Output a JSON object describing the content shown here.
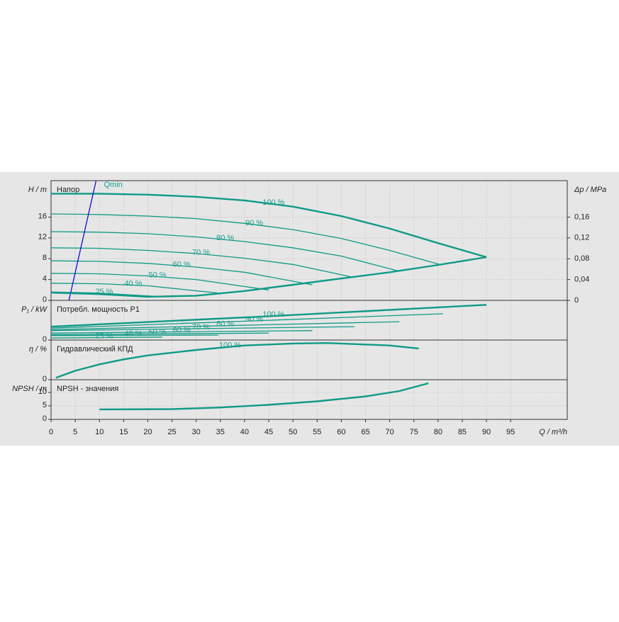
{
  "chart_data": [
    {
      "type": "line",
      "title": "Напор",
      "ylabel": "H / m",
      "y2label": "Δp / MPa",
      "ylim": [
        0,
        23
      ],
      "yticks": [
        0,
        4,
        8,
        12,
        16
      ],
      "y2lim": [
        0,
        0.23
      ],
      "y2ticks": [
        0,
        {
          "value": 0.04,
          "label": "0,04"
        },
        {
          "value": 0.08,
          "label": "0,08"
        },
        {
          "value": 0.12,
          "label": "0,12"
        },
        {
          "value": 0.16,
          "label": "0,16"
        }
      ],
      "series": [
        {
          "name": "100 %",
          "color": "#0f9a87",
          "x": [
            0,
            10,
            20,
            30,
            40,
            50,
            60,
            70,
            80,
            90
          ],
          "values": [
            20.5,
            20.5,
            20.3,
            19.9,
            19.2,
            18,
            16.2,
            13.8,
            11,
            8.3
          ]
        },
        {
          "name": "90 %",
          "color": "#0f9a87",
          "x": [
            0,
            10,
            20,
            30,
            40,
            50,
            60,
            70,
            80.3
          ],
          "values": [
            16.6,
            16.5,
            16.2,
            15.7,
            14.8,
            13.6,
            11.9,
            9.6,
            6.9
          ]
        },
        {
          "name": "80 %",
          "color": "#0f9a87",
          "x": [
            0,
            10,
            20,
            30,
            40,
            50,
            60,
            72
          ],
          "values": [
            13.2,
            13.1,
            12.8,
            12.2,
            11.3,
            10.1,
            8.5,
            5.6
          ]
        },
        {
          "name": "70 %",
          "color": "#0f9a87",
          "x": [
            0,
            10,
            20,
            30,
            40,
            50,
            62.7
          ],
          "values": [
            10.1,
            10,
            9.6,
            9,
            8.1,
            6.9,
            4.4
          ]
        },
        {
          "name": "60 %",
          "color": "#0f9a87",
          "x": [
            0,
            10,
            20,
            30,
            40,
            54
          ],
          "values": [
            7.6,
            7.5,
            7.1,
            6.4,
            5.4,
            3.0
          ]
        },
        {
          "name": "50 %",
          "color": "#0f9a87",
          "x": [
            0,
            10,
            20,
            30,
            45
          ],
          "values": [
            5.2,
            5.1,
            4.7,
            4.0,
            2.0
          ]
        },
        {
          "name": "40 %",
          "color": "#0f9a87",
          "x": [
            0,
            10,
            20,
            34.6
          ],
          "values": [
            3.3,
            3.2,
            2.8,
            1.4
          ]
        },
        {
          "name": "25 %",
          "color": "#0f9a87",
          "x": [
            0,
            10,
            23
          ],
          "values": [
            1.6,
            1.4,
            0.7
          ]
        },
        {
          "name": "Qmin",
          "color": "#1010c8",
          "x": [
            3.7,
            9.3
          ],
          "values": [
            0,
            23
          ]
        },
        {
          "color": "#0f9a87",
          "x": [
            0,
            10,
            20,
            30,
            40,
            50,
            60,
            70,
            80,
            90
          ],
          "values": [
            1.5,
            1.2,
            0.7,
            0.9,
            1.8,
            3.0,
            4.2,
            5.4,
            6.8,
            8.3
          ]
        }
      ]
    },
    {
      "type": "line",
      "title": "Потребл. мощность P1",
      "ylabel": "P₁ / kW",
      "ylim": [
        0,
        8
      ],
      "yticks": [
        0
      ],
      "series": [
        {
          "name": "100 %",
          "color": "#0f9a87",
          "x": [
            0,
            45,
            90
          ],
          "values": [
            2.7,
            4.8,
            7.1
          ]
        },
        {
          "name": "90 %",
          "color": "#0f9a87",
          "x": [
            0,
            40,
            81
          ],
          "values": [
            2.4,
            3.8,
            5.3
          ]
        },
        {
          "name": "80 %",
          "color": "#0f9a87",
          "x": [
            0,
            36,
            72
          ],
          "values": [
            2.1,
            2.9,
            3.7
          ]
        },
        {
          "name": "70 %",
          "color": "#0f9a87",
          "x": [
            0,
            31,
            62.7
          ],
          "values": [
            1.9,
            2.3,
            2.7
          ]
        },
        {
          "name": "60 %",
          "color": "#0f9a87",
          "x": [
            0,
            27,
            54
          ],
          "values": [
            1.4,
            1.65,
            1.9
          ]
        },
        {
          "name": "50 %",
          "color": "#0f9a87",
          "x": [
            0,
            22,
            45
          ],
          "values": [
            1.1,
            1.25,
            1.4
          ]
        },
        {
          "name": "40 %",
          "color": "#0f9a87",
          "x": [
            0,
            17,
            34.6
          ],
          "values": [
            0.9,
            0.95,
            1.0
          ]
        },
        {
          "name": "25 %",
          "color": "#0f9a87",
          "x": [
            0,
            11,
            23
          ],
          "values": [
            0.4,
            0.5,
            0.6
          ]
        }
      ]
    },
    {
      "type": "line",
      "title": "Гидравлический КПД",
      "ylabel": "η / %",
      "ylim": [
        0,
        80
      ],
      "yticks": [
        0
      ],
      "series": [
        {
          "name": "100 %",
          "color": "#0f9a87",
          "x": [
            1,
            5,
            10,
            15,
            20,
            30,
            40,
            50,
            57,
            65,
            70,
            76
          ],
          "values": [
            4,
            18,
            31,
            41,
            49,
            60,
            69,
            73,
            74,
            71,
            69,
            63
          ]
        }
      ]
    },
    {
      "type": "line",
      "title": "NPSH - значения",
      "ylabel": "NPSH / m",
      "xlabel": "Q / m³/h",
      "ylim": [
        0,
        14.7
      ],
      "yticks": [
        0,
        5,
        10
      ],
      "xlim": [
        0,
        106.7
      ],
      "xticks": [
        0,
        5,
        10,
        15,
        20,
        25,
        30,
        35,
        40,
        45,
        50,
        55,
        60,
        65,
        70,
        75,
        80,
        85,
        90,
        95
      ],
      "series": [
        {
          "color": "#0f9a87",
          "x": [
            10,
            25,
            35,
            45,
            55,
            65,
            72,
            78
          ],
          "values": [
            3.7,
            3.8,
            4.4,
            5.4,
            6.7,
            8.5,
            10.5,
            13.4
          ]
        }
      ]
    }
  ]
}
